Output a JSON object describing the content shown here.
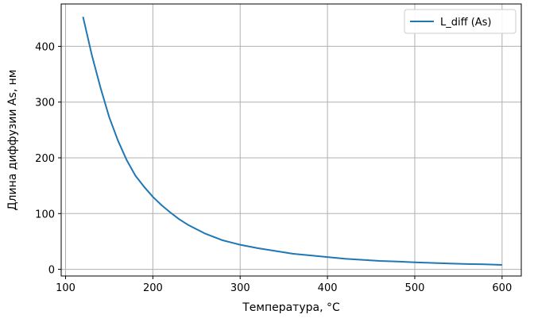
{
  "chart_data": {
    "type": "line",
    "title": "",
    "xlabel": "Температура, °C",
    "ylabel": "Длина диффузии As, нм",
    "xlim": [
      95,
      622
    ],
    "ylim": [
      -12,
      476
    ],
    "xticks": [
      100,
      200,
      300,
      400,
      500,
      600
    ],
    "yticks": [
      0,
      100,
      200,
      300,
      400
    ],
    "grid": true,
    "legend": "top-right",
    "series": [
      {
        "name": "L_diff (As)",
        "color": "#1f77b4",
        "x": [
          120,
          130,
          140,
          150,
          160,
          170,
          180,
          190,
          200,
          210,
          220,
          230,
          240,
          250,
          260,
          270,
          280,
          290,
          300,
          320,
          340,
          360,
          380,
          400,
          420,
          440,
          460,
          480,
          500,
          520,
          540,
          560,
          580,
          600
        ],
        "y": [
          453,
          385,
          326,
          273,
          231,
          196,
          168,
          148,
          130,
          115,
          102,
          90,
          80,
          72,
          64,
          58,
          52,
          48,
          44,
          38,
          33,
          28,
          25,
          22,
          19,
          17,
          15,
          14,
          12.5,
          11.5,
          10.5,
          9.5,
          9,
          8
        ]
      }
    ]
  }
}
